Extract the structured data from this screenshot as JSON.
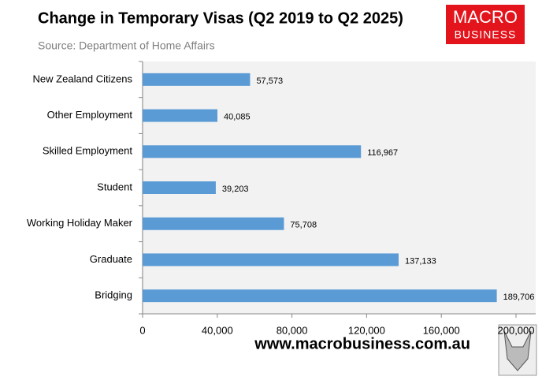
{
  "chart_data": {
    "type": "bar",
    "orientation": "horizontal",
    "title": "Change in Temporary Visas (Q2 2019 to Q2 2025)",
    "subtitle": "Source: Department of Home Affairs",
    "categories": [
      "New Zealand Citizens",
      "Other Employment",
      "Skilled Employment",
      "Student",
      "Working Holiday Maker",
      "Graduate",
      "Bridging"
    ],
    "values": [
      57573,
      40085,
      116967,
      39203,
      75708,
      137133,
      189706
    ],
    "value_labels": [
      "57,573",
      "40,085",
      "116,967",
      "39,203",
      "75,708",
      "137,133",
      "189,706"
    ],
    "color": "#5b9bd5",
    "xlim": [
      0,
      200000
    ],
    "xticks": [
      0,
      {
        "value": 40000,
        "label": "40,000"
      },
      {
        "value": 80000,
        "label": "80,000"
      },
      {
        "value": 120000,
        "label": "120,000"
      },
      {
        "value": 160000,
        "label": "160,000"
      },
      {
        "value": 200000,
        "label": "200,000"
      }
    ],
    "grid": false
  },
  "logo": {
    "line1": "MACRO",
    "line2": "BUSINESS"
  },
  "footer": "www.macrobusiness.com.au"
}
